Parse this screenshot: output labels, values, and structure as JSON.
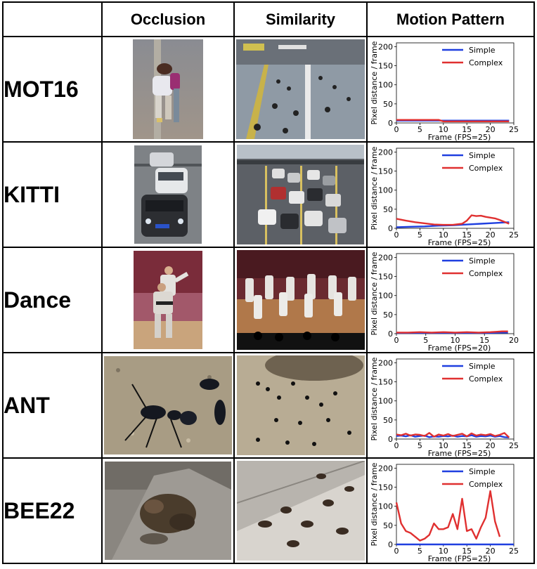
{
  "headers": [
    "",
    "Occlusion",
    "Similarity",
    "Motion Pattern"
  ],
  "colors": {
    "simple": "#1f3fe0",
    "complex": "#e03030"
  },
  "rows": [
    {
      "name": "MOT16",
      "occlusion_image": "pedestrians-with-backpacks-photo",
      "similarity_image": "crowded-street-walkway-photo",
      "chart_data": {
        "type": "line",
        "xlabel": "Frame (FPS=25)",
        "ylabel": "Pixel distance / frame",
        "xlim": [
          0,
          25
        ],
        "ylim": [
          0,
          210
        ],
        "xticks": [
          0,
          5,
          10,
          15,
          20,
          25
        ],
        "yticks": [
          0,
          50,
          100,
          150,
          200
        ],
        "legend": "top-right",
        "series": [
          {
            "name": "Simple",
            "key": "simple",
            "x": [
              0,
              2,
              4,
              6,
              8,
              10,
              12,
              14,
              16,
              18,
              20,
              22,
              24
            ],
            "y": [
              6,
              6,
              6,
              6,
              6,
              6,
              6,
              6,
              6,
              6,
              6,
              6,
              6
            ]
          },
          {
            "name": "Complex",
            "key": "complex",
            "x": [
              0,
              2,
              4,
              6,
              8,
              9,
              10,
              12,
              14,
              16,
              18,
              20,
              22,
              24
            ],
            "y": [
              8,
              8,
              8,
              8,
              8,
              8,
              4,
              4,
              4,
              4,
              4,
              4,
              4,
              4
            ]
          }
        ]
      }
    },
    {
      "name": "KITTI",
      "occlusion_image": "cars-on-road-photo",
      "similarity_image": "traffic-jam-photo",
      "chart_data": {
        "type": "line",
        "xlabel": "Frame (FPS=25)",
        "ylabel": "Pixel distance / frame",
        "xlim": [
          0,
          25
        ],
        "ylim": [
          0,
          210
        ],
        "xticks": [
          0,
          5,
          10,
          15,
          20,
          25
        ],
        "yticks": [
          0,
          50,
          100,
          150,
          200
        ],
        "legend": "top-right",
        "series": [
          {
            "name": "Simple",
            "key": "simple",
            "x": [
              0,
              3,
              6,
              9,
              12,
              15,
              18,
              21,
              24
            ],
            "y": [
              3,
              4,
              5,
              7,
              8,
              10,
              12,
              14,
              16
            ]
          },
          {
            "name": "Complex",
            "key": "complex",
            "x": [
              0,
              2,
              4,
              6,
              8,
              10,
              12,
              14,
              15,
              16,
              17,
              18,
              19,
              20,
              21,
              22,
              24
            ],
            "y": [
              25,
              20,
              16,
              13,
              10,
              9,
              9,
              12,
              20,
              34,
              32,
              33,
              30,
              28,
              26,
              22,
              12
            ]
          }
        ]
      }
    },
    {
      "name": "Dance",
      "occlusion_image": "dancers-on-stage-photo",
      "similarity_image": "group-dance-performance-photo",
      "chart_data": {
        "type": "line",
        "xlabel": "Frame (FPS=20)",
        "ylabel": "Pixel distance / frame",
        "xlim": [
          0,
          20
        ],
        "ylim": [
          0,
          210
        ],
        "xticks": [
          0,
          5,
          10,
          15,
          20
        ],
        "yticks": [
          0,
          50,
          100,
          150,
          200
        ],
        "legend": "top-right",
        "series": [
          {
            "name": "Simple",
            "key": "simple",
            "x": [
              0,
              2,
              4,
              6,
              8,
              10,
              12,
              14,
              16,
              18,
              19
            ],
            "y": [
              2,
              2,
              2,
              2,
              2,
              2,
              2,
              2,
              2,
              3,
              3
            ]
          },
          {
            "name": "Complex",
            "key": "complex",
            "x": [
              0,
              2,
              4,
              6,
              8,
              10,
              12,
              14,
              16,
              17,
              18,
              19
            ],
            "y": [
              3,
              3,
              4,
              3,
              4,
              3,
              4,
              3,
              4,
              5,
              6,
              6
            ]
          }
        ]
      }
    },
    {
      "name": "ANT",
      "occlusion_image": "ants-closeup-photo",
      "similarity_image": "ant-colony-photo",
      "chart_data": {
        "type": "line",
        "xlabel": "Frame (FPS=25)",
        "ylabel": "Pixel distance / frame",
        "xlim": [
          0,
          25
        ],
        "ylim": [
          0,
          210
        ],
        "xticks": [
          0,
          5,
          10,
          15,
          20,
          25
        ],
        "yticks": [
          0,
          50,
          100,
          150,
          200
        ],
        "legend": "top-right",
        "series": [
          {
            "name": "Simple",
            "key": "simple",
            "x": [
              0,
              1,
              2,
              3,
              4,
              5,
              6,
              7,
              8,
              9,
              10,
              11,
              12,
              13,
              14,
              15,
              16,
              17,
              18,
              19,
              20,
              21,
              22,
              23,
              24
            ],
            "y": [
              8,
              9,
              7,
              10,
              6,
              8,
              9,
              5,
              7,
              6,
              8,
              7,
              9,
              6,
              8,
              7,
              10,
              6,
              8,
              7,
              9,
              6,
              8,
              5,
              4
            ]
          },
          {
            "name": "Complex",
            "key": "complex",
            "x": [
              0,
              1,
              2,
              3,
              4,
              5,
              6,
              7,
              8,
              9,
              10,
              11,
              12,
              13,
              14,
              15,
              16,
              17,
              18,
              19,
              20,
              21,
              22,
              23,
              24
            ],
            "y": [
              12,
              10,
              14,
              9,
              12,
              11,
              8,
              16,
              6,
              12,
              9,
              13,
              8,
              11,
              14,
              7,
              15,
              9,
              12,
              10,
              13,
              8,
              11,
              16,
              4
            ]
          }
        ]
      }
    },
    {
      "name": "BEE22",
      "occlusion_image": "bee-closeup-photo",
      "similarity_image": "bees-on-surface-photo",
      "chart_data": {
        "type": "line",
        "xlabel": "Frame (FPS=25)",
        "ylabel": "Pixel distance / frame",
        "xlim": [
          0,
          25
        ],
        "ylim": [
          0,
          210
        ],
        "xticks": [
          0,
          5,
          10,
          15,
          20,
          25
        ],
        "yticks": [
          0,
          50,
          100,
          150,
          200
        ],
        "legend": "top-right",
        "series": [
          {
            "name": "Simple",
            "key": "simple",
            "x": [
              0,
              5,
              10,
              15,
              20,
              25
            ],
            "y": [
              0,
              0,
              0,
              0,
              0,
              0
            ]
          },
          {
            "name": "Complex",
            "key": "complex",
            "x": [
              0,
              1,
              2,
              3,
              4,
              5,
              6,
              7,
              8,
              9,
              10,
              11,
              12,
              13,
              14,
              15,
              16,
              17,
              18,
              19,
              20,
              21,
              22
            ],
            "y": [
              110,
              55,
              35,
              30,
              20,
              10,
              15,
              25,
              55,
              40,
              40,
              45,
              80,
              40,
              120,
              35,
              40,
              15,
              45,
              70,
              140,
              60,
              20
            ]
          }
        ]
      }
    }
  ]
}
